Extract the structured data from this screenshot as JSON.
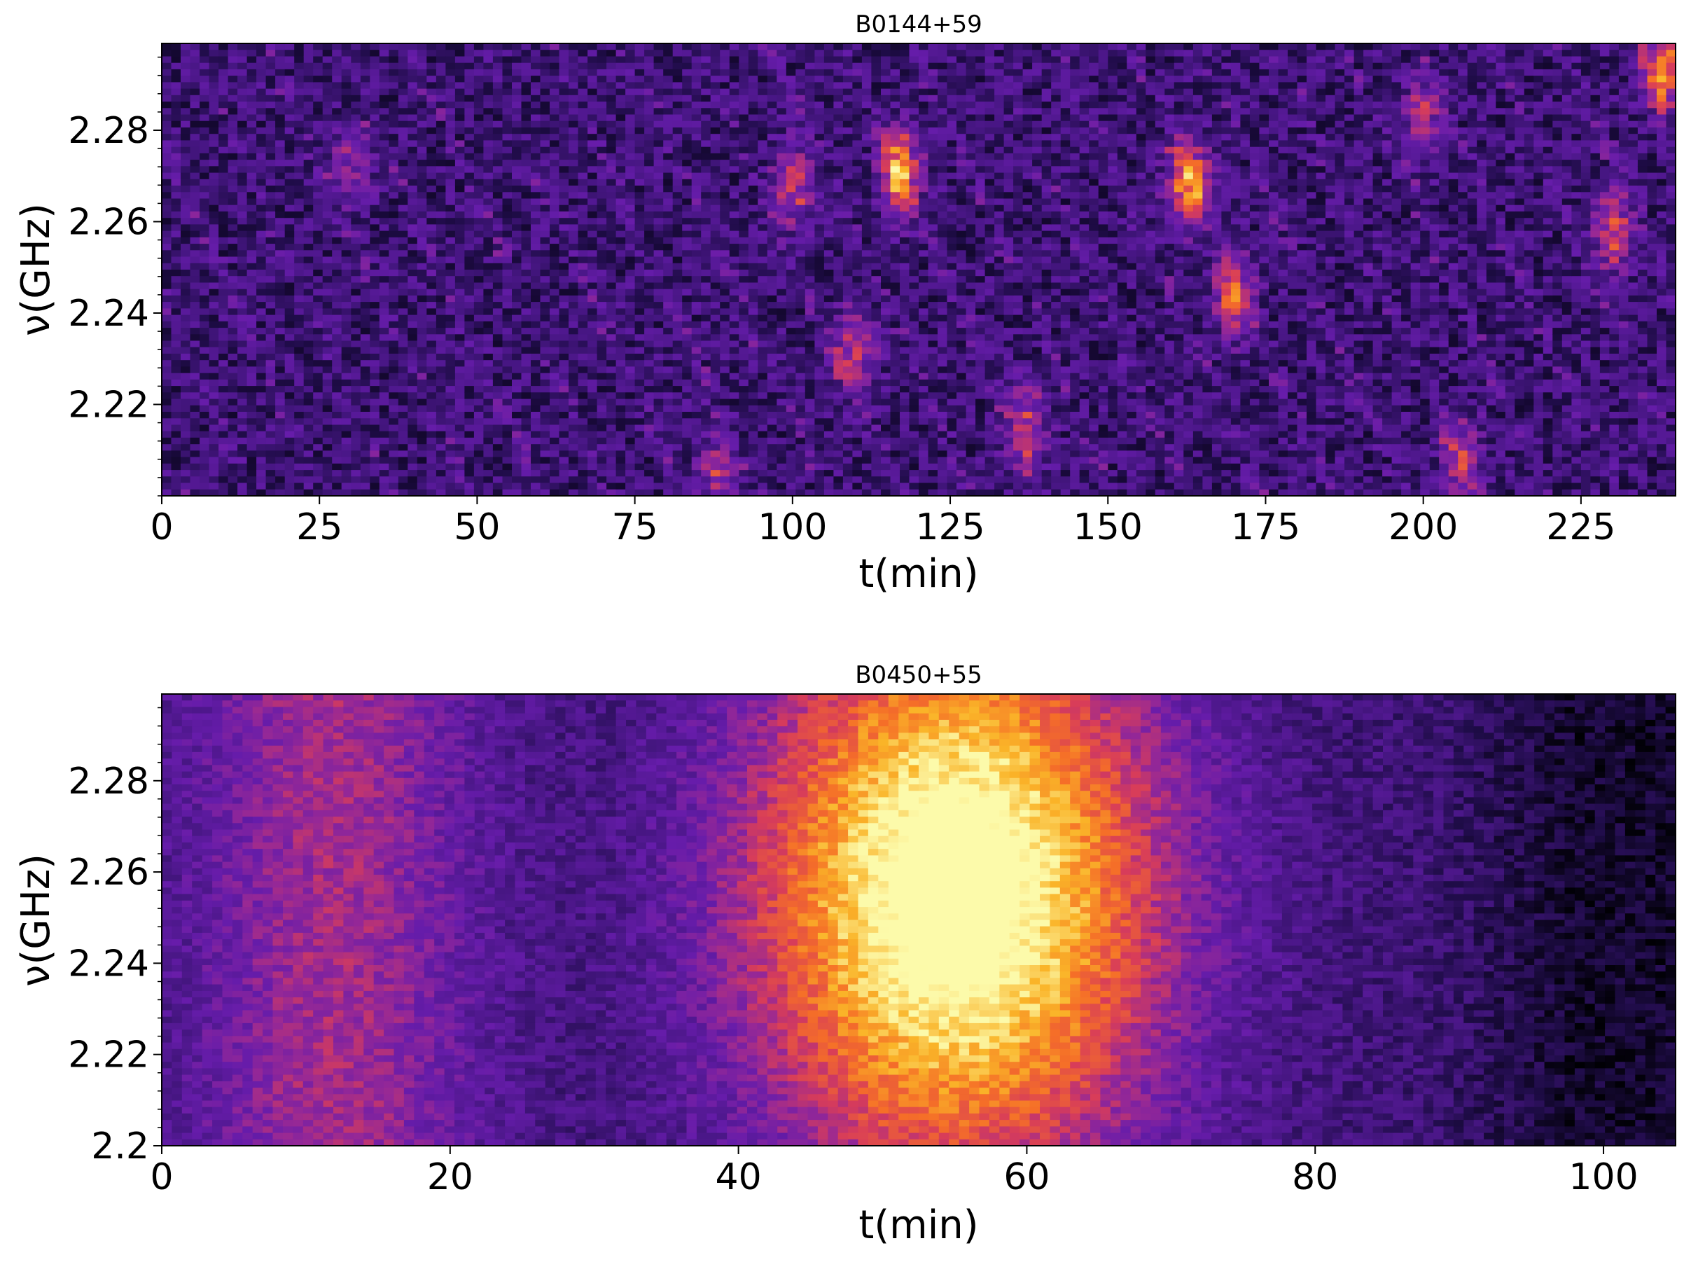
{
  "chart_data": [
    {
      "type": "heatmap",
      "title": "B0144+59",
      "xlabel": "t(min)",
      "ylabel": "ν(GHz)",
      "xlim": [
        0,
        240
      ],
      "ylim": [
        2.2,
        2.299
      ],
      "xticks": [
        "0",
        "25",
        "50",
        "75",
        "100",
        "125",
        "150",
        "175",
        "200",
        "225"
      ],
      "yticks": [
        "2.22",
        "2.24",
        "2.26",
        "2.28"
      ],
      "colormap": "inferno-like (black → purple → orange → yellow)",
      "description": "dynamic spectrum with many narrow diagonal scintles",
      "bright_features": [
        {
          "t": 117,
          "nu": 2.271,
          "intensity": 1.0
        },
        {
          "t": 163,
          "nu": 2.268,
          "intensity": 0.95
        },
        {
          "t": 238,
          "nu": 2.293,
          "intensity": 0.9
        },
        {
          "t": 170,
          "nu": 2.244,
          "intensity": 0.7
        },
        {
          "t": 100,
          "nu": 2.268,
          "intensity": 0.6
        },
        {
          "t": 110,
          "nu": 2.232,
          "intensity": 0.6
        },
        {
          "t": 137,
          "nu": 2.215,
          "intensity": 0.6
        },
        {
          "t": 230,
          "nu": 2.258,
          "intensity": 0.6
        },
        {
          "t": 206,
          "nu": 2.208,
          "intensity": 0.5
        },
        {
          "t": 30,
          "nu": 2.272,
          "intensity": 0.4
        },
        {
          "t": 88,
          "nu": 2.205,
          "intensity": 0.45
        },
        {
          "t": 200,
          "nu": 2.283,
          "intensity": 0.45
        }
      ]
    },
    {
      "type": "heatmap",
      "title": "B0450+55",
      "xlabel": "t(min)",
      "ylabel": "ν(GHz)",
      "xlim": [
        0,
        105
      ],
      "ylim": [
        2.2,
        2.299
      ],
      "xticks": [
        "0",
        "20",
        "40",
        "60",
        "80",
        "100"
      ],
      "yticks": [
        "2.2",
        "2.22",
        "2.24",
        "2.26",
        "2.28"
      ],
      "colormap": "inferno-like (black → purple → orange → yellow)",
      "description": "single broad scintle peaking near t≈55 min, ν≈2.255 GHz",
      "peak": {
        "t": 55,
        "nu": 2.255,
        "intensity": 1.0
      }
    }
  ]
}
